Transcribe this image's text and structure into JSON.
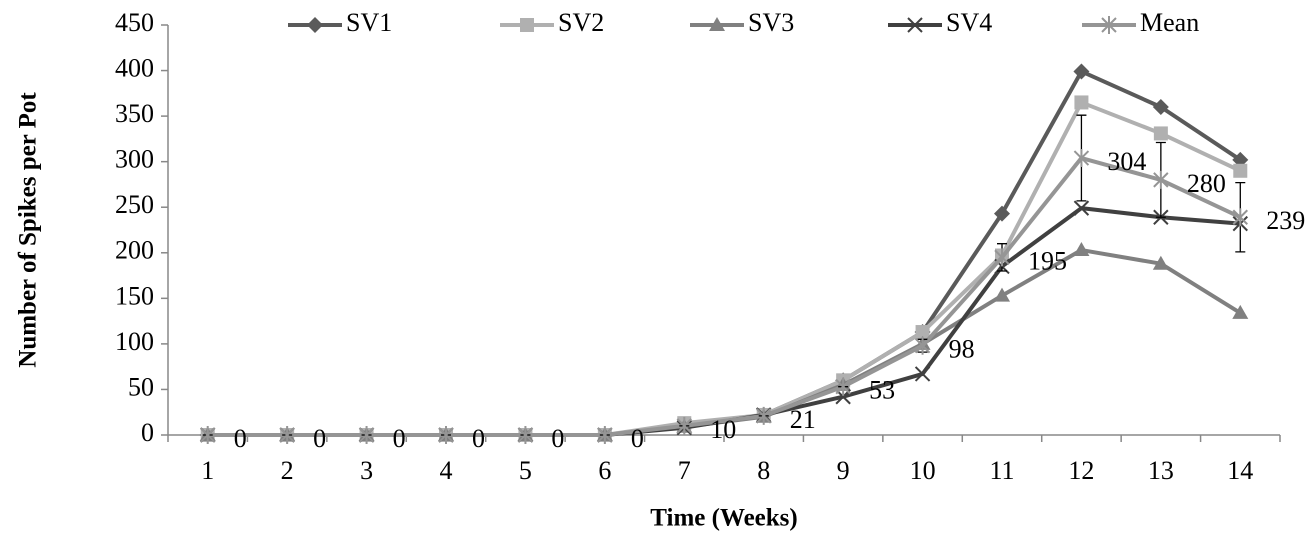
{
  "chart_data": {
    "type": "line",
    "x_label": "Time (Weeks)",
    "y_label": "Number of Spikes per Pot",
    "categories": [
      1,
      2,
      3,
      4,
      5,
      6,
      7,
      8,
      9,
      10,
      11,
      12,
      13,
      14
    ],
    "ylim": [
      0,
      450
    ],
    "yticks": [
      0,
      50,
      100,
      150,
      200,
      250,
      300,
      350,
      400,
      450
    ],
    "legend": "top",
    "series": [
      {
        "name": "SV1",
        "color": "#5a5a5a",
        "marker": "diamond",
        "values": [
          0,
          0,
          0,
          0,
          0,
          0,
          10,
          22,
          60,
          113,
          243,
          399,
          360,
          302
        ]
      },
      {
        "name": "SV2",
        "color": "#b0b0b0",
        "marker": "square",
        "values": [
          0,
          0,
          0,
          0,
          0,
          0,
          13,
          22,
          60,
          113,
          197,
          365,
          331,
          290
        ]
      },
      {
        "name": "SV3",
        "color": "#808080",
        "marker": "triangle",
        "values": [
          0,
          0,
          0,
          0,
          0,
          0,
          9,
          20,
          55,
          100,
          153,
          203,
          188,
          134
        ]
      },
      {
        "name": "SV4",
        "color": "#404040",
        "marker": "x",
        "values": [
          0,
          0,
          0,
          0,
          0,
          0,
          8,
          22,
          42,
          67,
          185,
          249,
          239,
          232
        ]
      },
      {
        "name": "Mean",
        "color": "#959595",
        "marker": "asterisk",
        "data_labels": true,
        "values": [
          0,
          0,
          0,
          0,
          0,
          0,
          10,
          21,
          53,
          98,
          195,
          304,
          280,
          239
        ],
        "error": [
          0,
          0,
          0,
          0,
          0,
          0,
          0,
          0,
          0,
          7,
          15,
          47,
          41,
          38
        ]
      }
    ]
  }
}
